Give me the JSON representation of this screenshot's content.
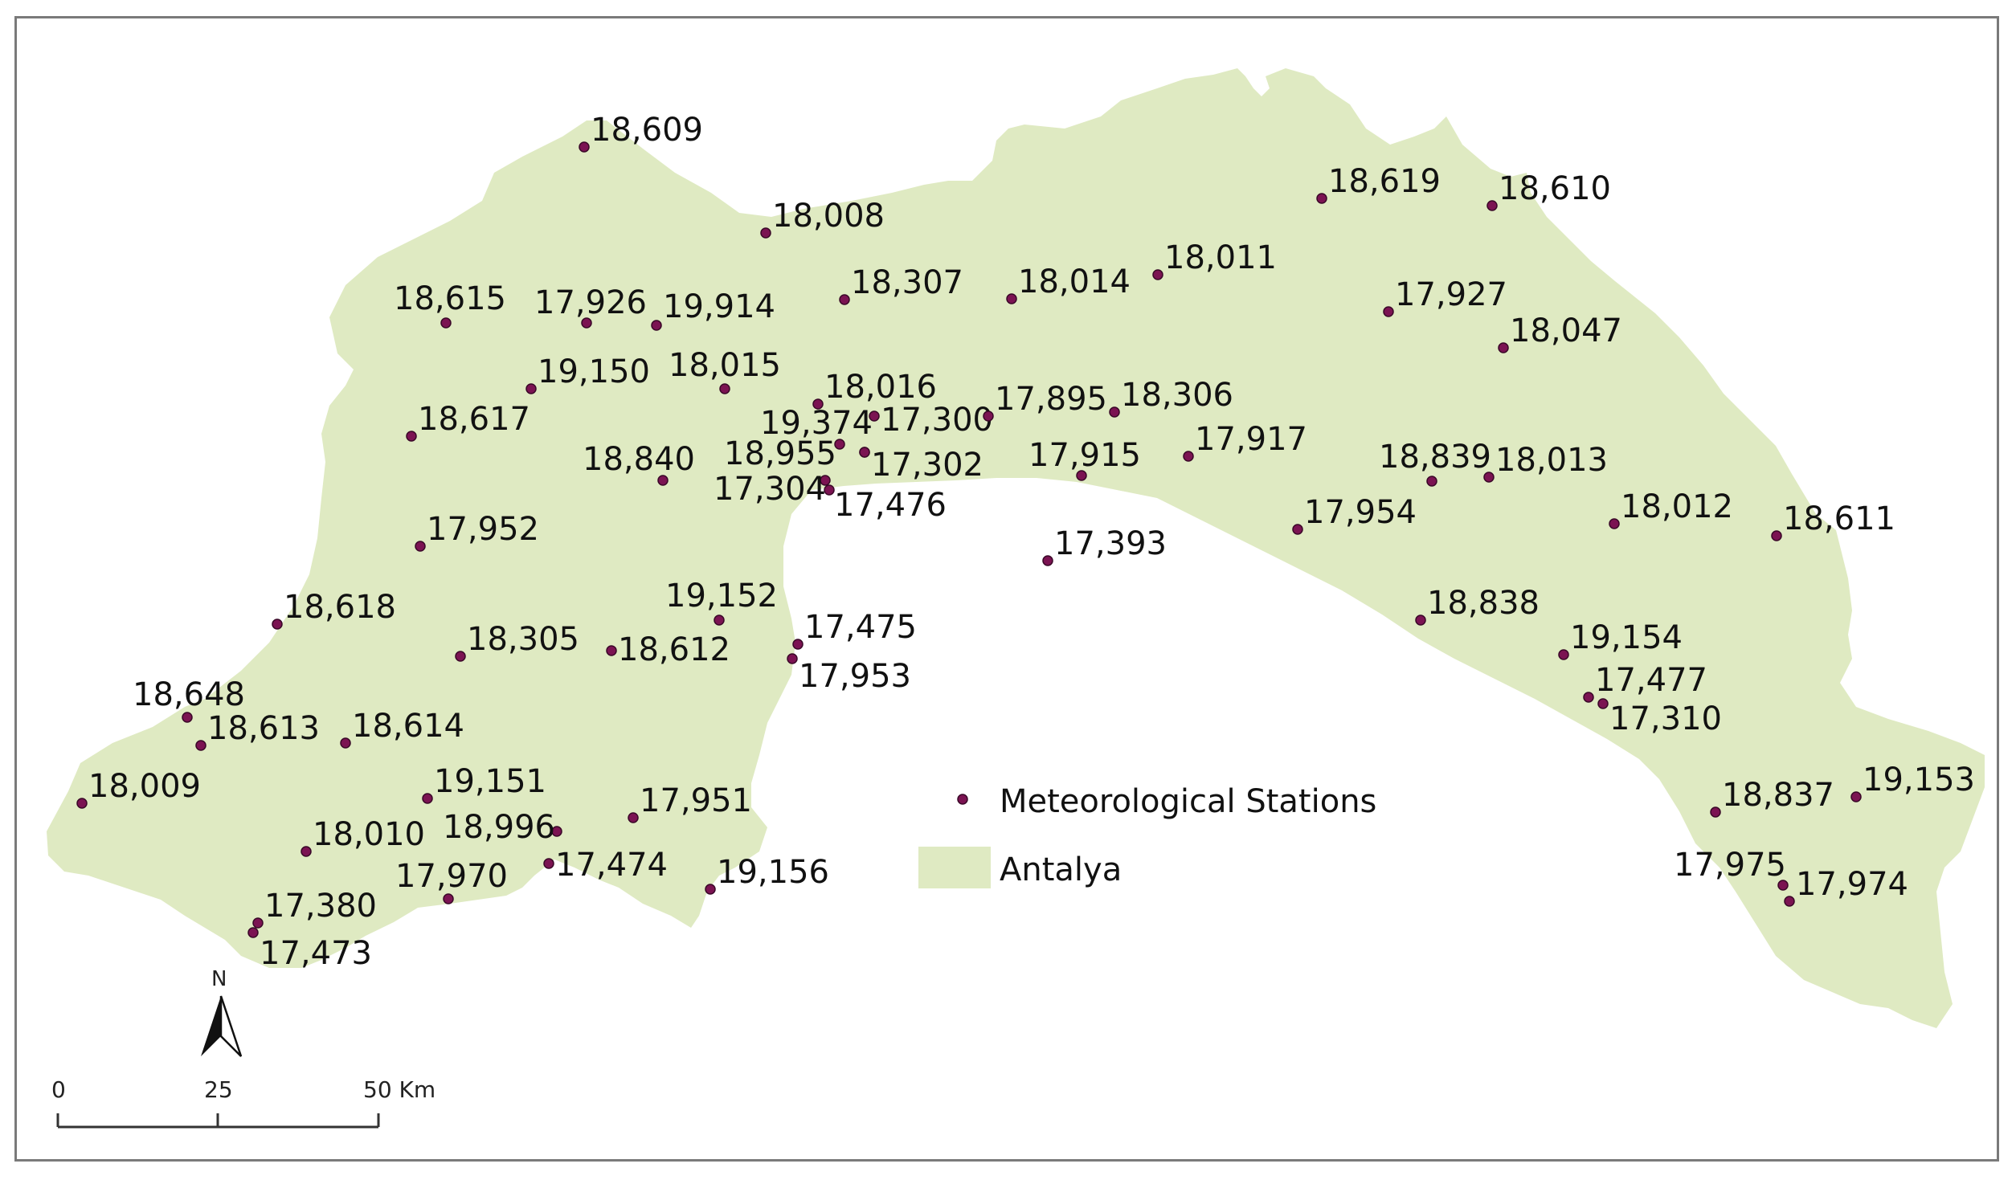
{
  "legend": {
    "stations_label": "Meteorological Stations",
    "region_label": "Antalya",
    "region_color": "#dfeac2",
    "station_color": "#7b1352"
  },
  "north_arrow": {
    "label": "N"
  },
  "scale_bar": {
    "ticks": [
      "0",
      "25",
      "50 Km"
    ]
  },
  "stations": [
    {
      "id": "18,609"
    },
    {
      "id": "18,008"
    },
    {
      "id": "18,619"
    },
    {
      "id": "18,610"
    },
    {
      "id": "18,615"
    },
    {
      "id": "17,926"
    },
    {
      "id": "19,914"
    },
    {
      "id": "18,307"
    },
    {
      "id": "18,014"
    },
    {
      "id": "18,011"
    },
    {
      "id": "17,927"
    },
    {
      "id": "18,047"
    },
    {
      "id": "19,150"
    },
    {
      "id": "18,015"
    },
    {
      "id": "18,016"
    },
    {
      "id": "18,617"
    },
    {
      "id": "19,374"
    },
    {
      "id": "17,300"
    },
    {
      "id": "17,895"
    },
    {
      "id": "18,306"
    },
    {
      "id": "18,840"
    },
    {
      "id": "18,955"
    },
    {
      "id": "17,302"
    },
    {
      "id": "17,917"
    },
    {
      "id": "17,915"
    },
    {
      "id": "18,839"
    },
    {
      "id": "18,013"
    },
    {
      "id": "17,304"
    },
    {
      "id": "17,476"
    },
    {
      "id": "17,952"
    },
    {
      "id": "17,954"
    },
    {
      "id": "18,012"
    },
    {
      "id": "18,611"
    },
    {
      "id": "17,393"
    },
    {
      "id": "19,152"
    },
    {
      "id": "18,618"
    },
    {
      "id": "18,838"
    },
    {
      "id": "17,475"
    },
    {
      "id": "18,305"
    },
    {
      "id": "18,612"
    },
    {
      "id": "19,154"
    },
    {
      "id": "17,953"
    },
    {
      "id": "17,477"
    },
    {
      "id": "18,648"
    },
    {
      "id": "17,310"
    },
    {
      "id": "18,613"
    },
    {
      "id": "18,614"
    },
    {
      "id": "18,009"
    },
    {
      "id": "19,151"
    },
    {
      "id": "17,951"
    },
    {
      "id": "18,837"
    },
    {
      "id": "19,153"
    },
    {
      "id": "18,010"
    },
    {
      "id": "18,996"
    },
    {
      "id": "17,474"
    },
    {
      "id": "19,156"
    },
    {
      "id": "17,970"
    },
    {
      "id": "17,975"
    },
    {
      "id": "17,974"
    },
    {
      "id": "17,380"
    },
    {
      "id": "17,473"
    }
  ]
}
